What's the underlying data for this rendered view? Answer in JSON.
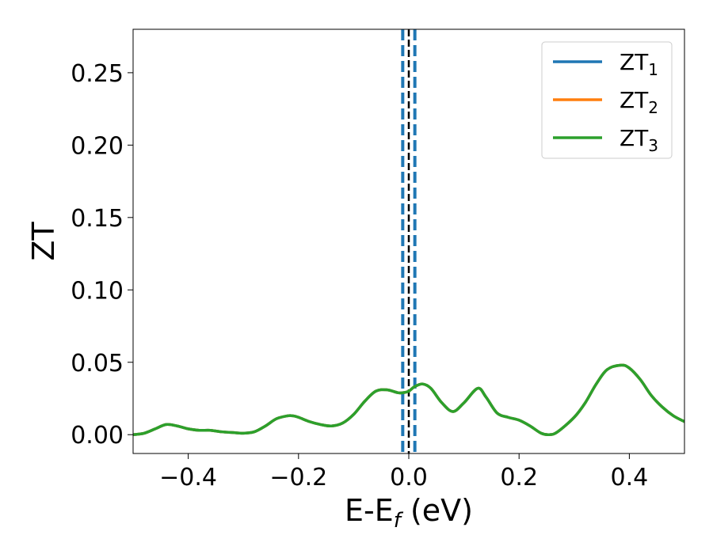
{
  "chart_data": {
    "type": "line",
    "xlabel": "E-E",
    "xlabel_sub": "f",
    "xlabel_unit": " (eV)",
    "ylabel": "ZT",
    "xlim": [
      -0.5,
      0.5
    ],
    "ylim": [
      -0.013,
      0.28
    ],
    "xticks": [
      -0.4,
      -0.2,
      0.0,
      0.2,
      0.4
    ],
    "xtick_labels": [
      "−0.4",
      "−0.2",
      "0.0",
      "0.2",
      "0.4"
    ],
    "yticks": [
      0.0,
      0.05,
      0.1,
      0.15,
      0.2,
      0.25
    ],
    "ytick_labels": [
      "0.00",
      "0.05",
      "0.10",
      "0.15",
      "0.20",
      "0.25"
    ],
    "grid": false,
    "legend_position": "top-right",
    "series": [
      {
        "name": "ZT",
        "name_sub": "1",
        "color": "#1f77b4",
        "x": [
          -0.5,
          -0.48,
          -0.46,
          -0.44,
          -0.42,
          -0.4,
          -0.38,
          -0.36,
          -0.34,
          -0.32,
          -0.3,
          -0.28,
          -0.26,
          -0.24,
          -0.22,
          -0.21,
          -0.2,
          -0.18,
          -0.16,
          -0.14,
          -0.12,
          -0.1,
          -0.08,
          -0.06,
          -0.04,
          -0.02,
          -0.01,
          0.0,
          0.01,
          0.025,
          0.04,
          0.06,
          0.08,
          0.1,
          0.125,
          0.14,
          0.16,
          0.18,
          0.2,
          0.22,
          0.24,
          0.255,
          0.27,
          0.3,
          0.32,
          0.34,
          0.36,
          0.385,
          0.4,
          0.42,
          0.44,
          0.46,
          0.48,
          0.5
        ],
        "y": [
          0.0,
          0.001,
          0.004,
          0.007,
          0.006,
          0.004,
          0.003,
          0.003,
          0.002,
          0.0015,
          0.001,
          0.002,
          0.006,
          0.011,
          0.013,
          0.013,
          0.012,
          0.009,
          0.007,
          0.006,
          0.008,
          0.014,
          0.023,
          0.03,
          0.031,
          0.029,
          0.029,
          0.03,
          0.033,
          0.035,
          0.032,
          0.022,
          0.016,
          0.022,
          0.032,
          0.026,
          0.015,
          0.012,
          0.01,
          0.006,
          0.001,
          0.0,
          0.002,
          0.012,
          0.022,
          0.035,
          0.045,
          0.048,
          0.046,
          0.038,
          0.027,
          0.019,
          0.013,
          0.009
        ]
      },
      {
        "name": "ZT",
        "name_sub": "2",
        "color": "#ff7f0e",
        "x": [
          -0.5,
          -0.48,
          -0.46,
          -0.44,
          -0.42,
          -0.4,
          -0.38,
          -0.36,
          -0.34,
          -0.32,
          -0.3,
          -0.28,
          -0.26,
          -0.24,
          -0.22,
          -0.21,
          -0.2,
          -0.18,
          -0.16,
          -0.14,
          -0.12,
          -0.1,
          -0.08,
          -0.06,
          -0.04,
          -0.02,
          -0.01,
          0.0,
          0.01,
          0.025,
          0.04,
          0.06,
          0.08,
          0.1,
          0.125,
          0.14,
          0.16,
          0.18,
          0.2,
          0.22,
          0.24,
          0.255,
          0.27,
          0.3,
          0.32,
          0.34,
          0.36,
          0.385,
          0.4,
          0.42,
          0.44,
          0.46,
          0.48,
          0.5
        ],
        "y": [
          0.0,
          0.001,
          0.004,
          0.007,
          0.006,
          0.004,
          0.003,
          0.003,
          0.002,
          0.0015,
          0.001,
          0.002,
          0.006,
          0.011,
          0.013,
          0.013,
          0.012,
          0.009,
          0.007,
          0.006,
          0.008,
          0.014,
          0.023,
          0.03,
          0.031,
          0.029,
          0.029,
          0.03,
          0.033,
          0.035,
          0.032,
          0.022,
          0.016,
          0.022,
          0.032,
          0.026,
          0.015,
          0.012,
          0.01,
          0.006,
          0.001,
          0.0,
          0.002,
          0.012,
          0.022,
          0.035,
          0.045,
          0.048,
          0.046,
          0.038,
          0.027,
          0.019,
          0.013,
          0.009
        ]
      },
      {
        "name": "ZT",
        "name_sub": "3",
        "color": "#2ca02c",
        "x": [
          -0.5,
          -0.48,
          -0.46,
          -0.44,
          -0.42,
          -0.4,
          -0.38,
          -0.36,
          -0.34,
          -0.32,
          -0.3,
          -0.28,
          -0.26,
          -0.24,
          -0.22,
          -0.21,
          -0.2,
          -0.18,
          -0.16,
          -0.14,
          -0.12,
          -0.1,
          -0.08,
          -0.06,
          -0.04,
          -0.02,
          -0.01,
          0.0,
          0.01,
          0.025,
          0.04,
          0.06,
          0.08,
          0.1,
          0.125,
          0.14,
          0.16,
          0.18,
          0.2,
          0.22,
          0.24,
          0.255,
          0.27,
          0.3,
          0.32,
          0.34,
          0.36,
          0.385,
          0.4,
          0.42,
          0.44,
          0.46,
          0.48,
          0.5
        ],
        "y": [
          0.0,
          0.001,
          0.004,
          0.007,
          0.006,
          0.004,
          0.003,
          0.003,
          0.002,
          0.0015,
          0.001,
          0.002,
          0.006,
          0.011,
          0.013,
          0.013,
          0.012,
          0.009,
          0.007,
          0.006,
          0.008,
          0.014,
          0.023,
          0.03,
          0.031,
          0.029,
          0.029,
          0.03,
          0.033,
          0.035,
          0.032,
          0.022,
          0.016,
          0.022,
          0.032,
          0.026,
          0.015,
          0.012,
          0.01,
          0.006,
          0.001,
          0.0,
          0.002,
          0.012,
          0.022,
          0.035,
          0.045,
          0.048,
          0.046,
          0.038,
          0.027,
          0.019,
          0.013,
          0.009
        ]
      }
    ],
    "vlines": [
      {
        "x": -0.011,
        "color": "#1f77b4",
        "style": "dashed"
      },
      {
        "x": 0.011,
        "color": "#1f77b4",
        "style": "dashed"
      },
      {
        "x": 0.0,
        "color": "#000000",
        "style": "dashed"
      }
    ]
  }
}
